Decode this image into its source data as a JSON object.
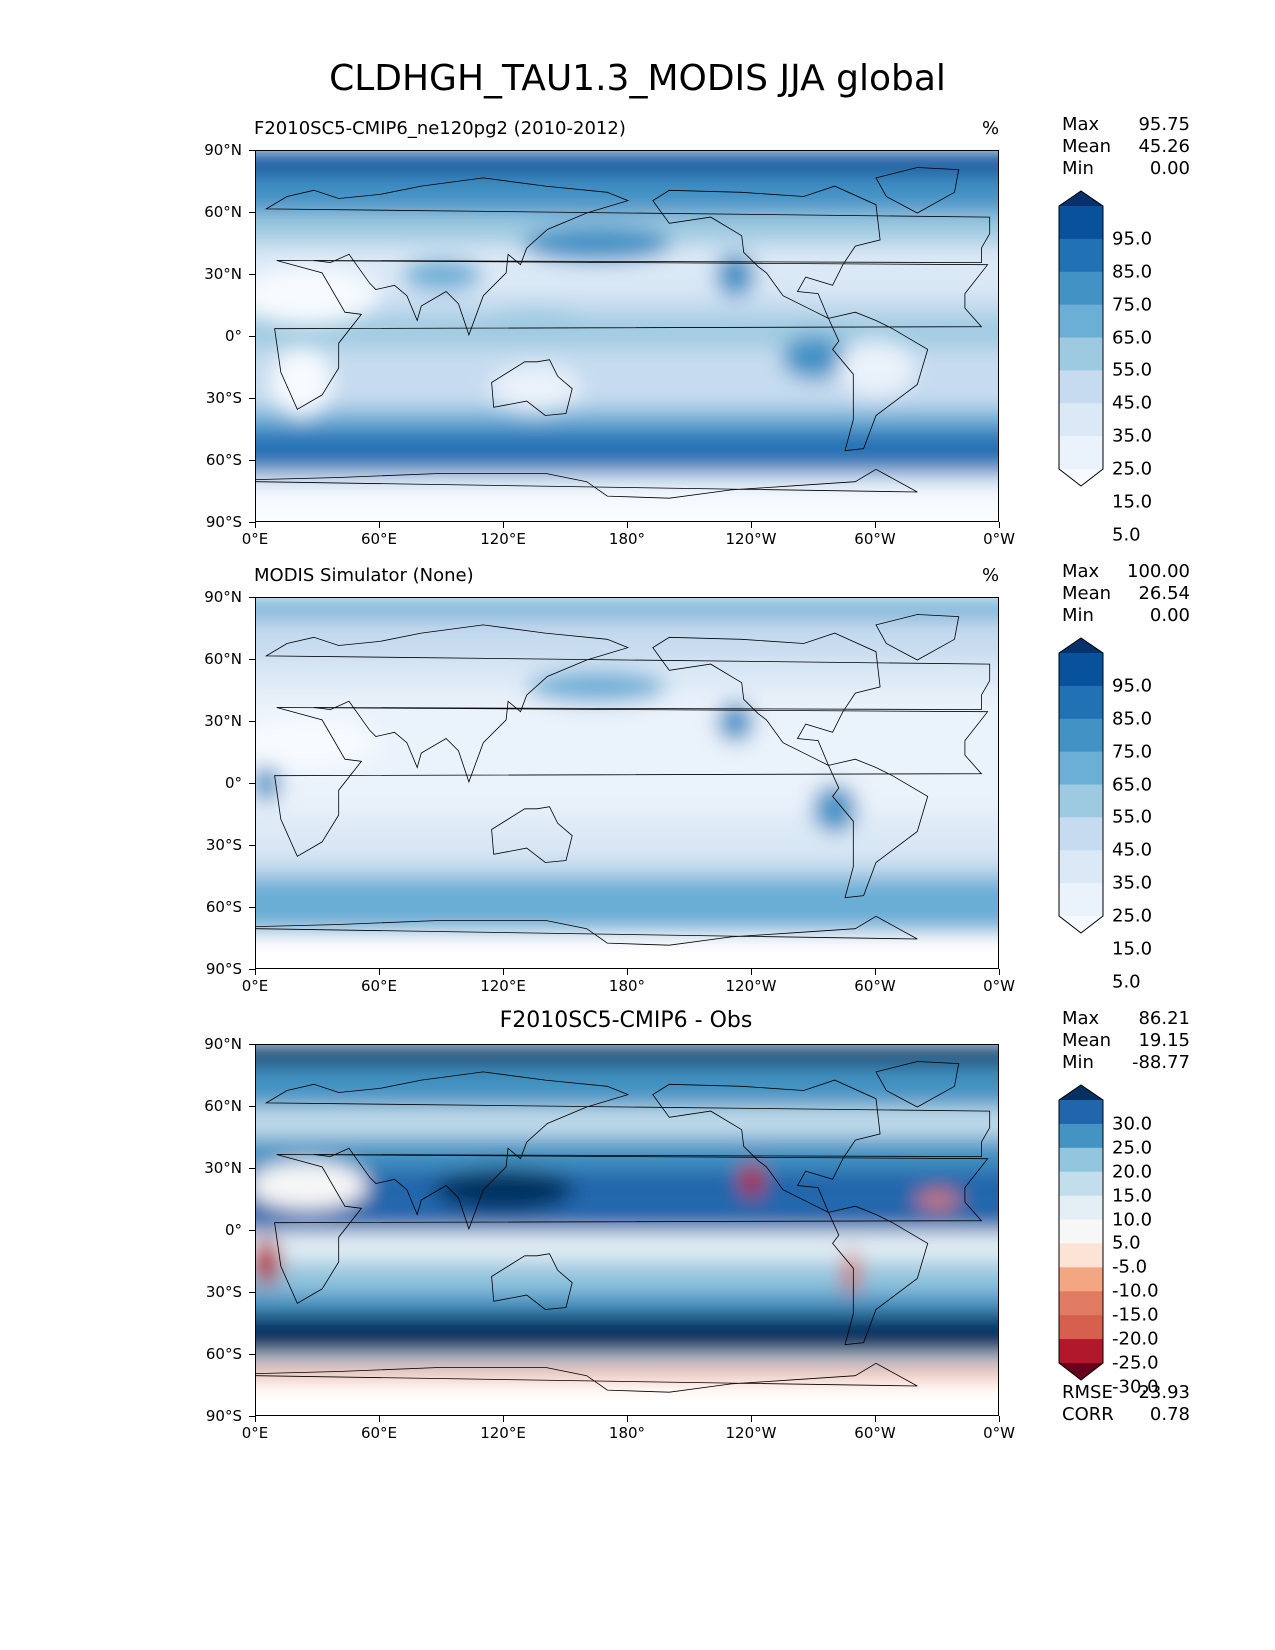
{
  "title": "CLDHGH_TAU1.3_MODIS JJA global",
  "axes": {
    "y_ticks": [
      "90°N",
      "60°N",
      "30°N",
      "0°",
      "30°S",
      "60°S",
      "90°S"
    ],
    "x_ticks": [
      "0°E",
      "60°E",
      "120°E",
      "180°",
      "120°W",
      "60°W",
      "0°W"
    ]
  },
  "panels": [
    {
      "title": "F2010SC5-CMIP6_ne120pg2 (2010-2012)",
      "title_align": "left",
      "units": "%",
      "stats": [
        {
          "label": "Max",
          "value": "95.75"
        },
        {
          "label": "Mean",
          "value": "45.26"
        },
        {
          "label": "Min",
          "value": "0.00"
        }
      ],
      "colorbar": {
        "labels": [
          "95.0",
          "85.0",
          "75.0",
          "65.0",
          "55.0",
          "45.0",
          "35.0",
          "25.0",
          "15.0",
          "5.0"
        ],
        "colors": [
          "#08306b",
          "#08519c",
          "#2171b5",
          "#4292c6",
          "#6baed6",
          "#9ecae1",
          "#c6dbef",
          "#dbe9f6",
          "#eaf2fb",
          "#f7fbff"
        ]
      },
      "metrics": []
    },
    {
      "title": "MODIS Simulator (None)",
      "title_align": "left",
      "units": "%",
      "stats": [
        {
          "label": "Max",
          "value": "100.00"
        },
        {
          "label": "Mean",
          "value": "26.54"
        },
        {
          "label": "Min",
          "value": "0.00"
        }
      ],
      "colorbar": {
        "labels": [
          "95.0",
          "85.0",
          "75.0",
          "65.0",
          "55.0",
          "45.0",
          "35.0",
          "25.0",
          "15.0",
          "5.0"
        ],
        "colors": [
          "#08306b",
          "#08519c",
          "#2171b5",
          "#4292c6",
          "#6baed6",
          "#9ecae1",
          "#c6dbef",
          "#dbe9f6",
          "#eaf2fb",
          "#f7fbff"
        ]
      },
      "metrics": []
    },
    {
      "title": "F2010SC5-CMIP6 - Obs",
      "title_align": "center",
      "units": "",
      "stats": [
        {
          "label": "Max",
          "value": "86.21"
        },
        {
          "label": "Mean",
          "value": "19.15"
        },
        {
          "label": "Min",
          "value": "-88.77"
        }
      ],
      "colorbar": {
        "labels": [
          "30.0",
          "25.0",
          "20.0",
          "15.0",
          "10.0",
          "5.0",
          "-5.0",
          "-10.0",
          "-15.0",
          "-20.0",
          "-25.0",
          "-30.0"
        ],
        "colors": [
          "#053061",
          "#2166ac",
          "#4393c3",
          "#92c5de",
          "#c2ddec",
          "#e3eef5",
          "#f7f7f7",
          "#fbe3d6",
          "#f4a582",
          "#e07a63",
          "#d6604d",
          "#b2182b",
          "#67001f"
        ]
      },
      "metrics": [
        {
          "label": "RMSE",
          "value": "23.93"
        },
        {
          "label": "CORR",
          "value": "0.78"
        }
      ]
    }
  ]
}
